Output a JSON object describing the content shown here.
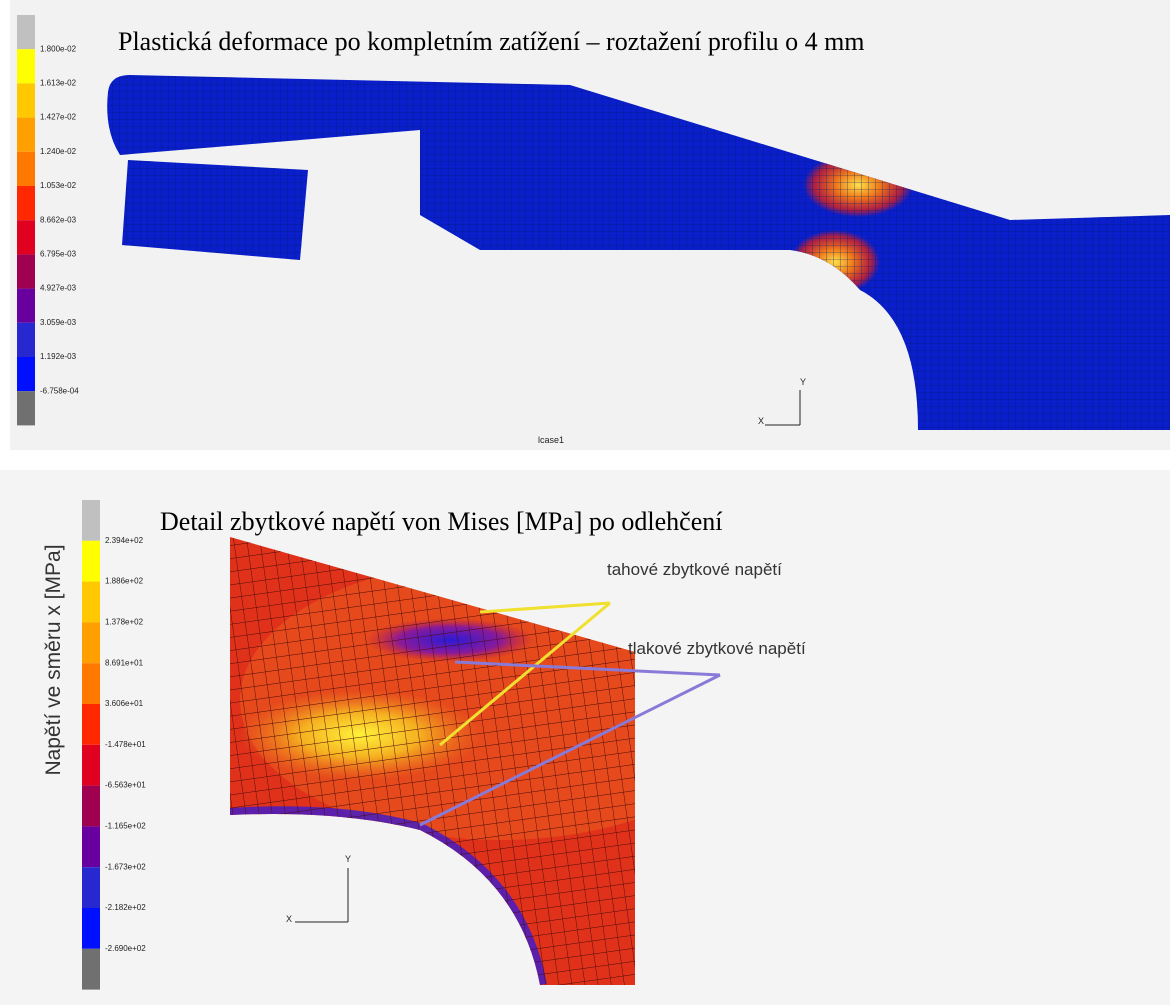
{
  "panels": [
    {
      "title": "Plastická deformace po kompletním zatížení – roztažení profilu o 4 mm",
      "legend": [
        "1.800e-02",
        "1.613e-02",
        "1.427e-02",
        "1.240e-02",
        "1.053e-02",
        "8.662e-03",
        "6.795e-03",
        "4.927e-03",
        "3.059e-03",
        "1.192e-03",
        "-6.758e-04"
      ],
      "caption": "lcase1",
      "axes": [
        "Y",
        "X"
      ]
    },
    {
      "title": "Detail zbytkové napětí von Mises [MPa] po odlehčení",
      "axis_label": "Napětí ve směru x [MPa]",
      "legend": [
        "2.394e+02",
        "1.886e+02",
        "1.378e+02",
        "8.691e+01",
        "3.606e+01",
        "-1.478e+01",
        "-6.563e+01",
        "-1.165e+02",
        "-1.673e+02",
        "-2.182e+02",
        "-2.690e+02"
      ],
      "annotations": [
        "tahové zbytkové napětí",
        "tlakové zbytkové napětí"
      ],
      "axes": [
        "Y",
        "X"
      ]
    }
  ]
}
